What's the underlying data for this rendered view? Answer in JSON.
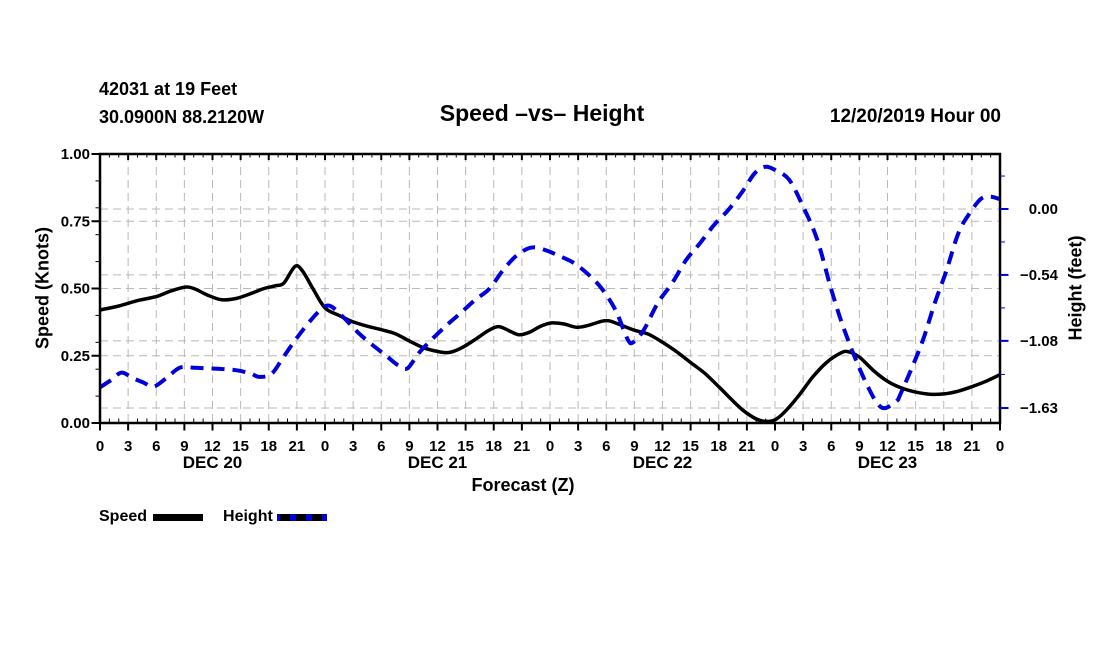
{
  "header": {
    "station_line1": "42031 at 19 Feet",
    "station_line2": "30.0900N 88.2120W",
    "title": "Speed –vs– Height",
    "datetime": "12/20/2019 Hour 00"
  },
  "axes": {
    "left": {
      "title": "Speed (Knots)",
      "tick_labels": [
        "1.00",
        "0.75",
        "0.50",
        "0.25",
        "0.00"
      ],
      "tick_values": [
        1.0,
        0.75,
        0.5,
        0.25,
        0.0
      ],
      "range": [
        0,
        1
      ]
    },
    "right": {
      "title": "Height (feet)",
      "tick_labels": [
        "0.00",
        "−0.54",
        "−1.08",
        "−1.63"
      ],
      "tick_values": [
        0.0,
        -0.54,
        -1.08,
        -1.63
      ]
    },
    "x": {
      "title": "Forecast (Z)",
      "tick_labels": [
        "0",
        "3",
        "6",
        "9",
        "12",
        "15",
        "18",
        "21",
        "0",
        "3",
        "6",
        "9",
        "12",
        "15",
        "18",
        "21",
        "0",
        "3",
        "6",
        "9",
        "12",
        "15",
        "18",
        "21",
        "0",
        "3",
        "6",
        "9",
        "12",
        "15",
        "18",
        "21",
        "0"
      ],
      "hour_step": 3,
      "range_hours": [
        0,
        96
      ],
      "day_labels": [
        "DEC 20",
        "DEC 21",
        "DEC 22",
        "DEC 23"
      ]
    }
  },
  "legend": {
    "items": [
      {
        "label": "Speed",
        "line": "solid",
        "color": "#000000"
      },
      {
        "label": "Height",
        "line": "dashed",
        "color": "#0000dd"
      }
    ]
  },
  "colors": {
    "speed": "#000000",
    "height": "#0000dd",
    "grid": "#b9b9b9",
    "axis": "#000000"
  },
  "chart_data": {
    "type": "line",
    "title": "Speed –vs– Height",
    "xlabel": "Forecast (Z)",
    "x_hours_domain": [
      0,
      96
    ],
    "grid": true,
    "legend_position": "bottom-left",
    "series": [
      {
        "name": "Speed",
        "unit": "Knots",
        "axis": "left",
        "color": "#000000",
        "style": "solid",
        "ylim": [
          0,
          1
        ],
        "points": [
          [
            0,
            0.42
          ],
          [
            2,
            0.435
          ],
          [
            4,
            0.455
          ],
          [
            6,
            0.47
          ],
          [
            7.5,
            0.49
          ],
          [
            9,
            0.505
          ],
          [
            10,
            0.5
          ],
          [
            11.5,
            0.475
          ],
          [
            13,
            0.458
          ],
          [
            14.5,
            0.463
          ],
          [
            16,
            0.48
          ],
          [
            17.5,
            0.5
          ],
          [
            18.7,
            0.51
          ],
          [
            19.6,
            0.52
          ],
          [
            20.8,
            0.582
          ],
          [
            21.6,
            0.565
          ],
          [
            22.7,
            0.5
          ],
          [
            24,
            0.428
          ],
          [
            25.5,
            0.4
          ],
          [
            27,
            0.376
          ],
          [
            28.5,
            0.36
          ],
          [
            30,
            0.347
          ],
          [
            31.5,
            0.332
          ],
          [
            33,
            0.305
          ],
          [
            34.5,
            0.28
          ],
          [
            36,
            0.266
          ],
          [
            37.2,
            0.262
          ],
          [
            38.5,
            0.278
          ],
          [
            40,
            0.31
          ],
          [
            41.5,
            0.345
          ],
          [
            42.6,
            0.358
          ],
          [
            43.8,
            0.34
          ],
          [
            44.7,
            0.328
          ],
          [
            45.8,
            0.337
          ],
          [
            47,
            0.36
          ],
          [
            48.2,
            0.372
          ],
          [
            49.5,
            0.368
          ],
          [
            50.8,
            0.356
          ],
          [
            52,
            0.362
          ],
          [
            53.5,
            0.378
          ],
          [
            54.3,
            0.38
          ],
          [
            55.5,
            0.365
          ],
          [
            57,
            0.345
          ],
          [
            58.5,
            0.33
          ],
          [
            60,
            0.3
          ],
          [
            61.5,
            0.265
          ],
          [
            63,
            0.225
          ],
          [
            64.5,
            0.185
          ],
          [
            66,
            0.135
          ],
          [
            67,
            0.1
          ],
          [
            68.5,
            0.05
          ],
          [
            70,
            0.015
          ],
          [
            71,
            0.006
          ],
          [
            72,
            0.012
          ],
          [
            73,
            0.04
          ],
          [
            74.5,
            0.1
          ],
          [
            76,
            0.17
          ],
          [
            77.5,
            0.225
          ],
          [
            79,
            0.26
          ],
          [
            79.8,
            0.265
          ],
          [
            81,
            0.245
          ],
          [
            82.5,
            0.195
          ],
          [
            84,
            0.155
          ],
          [
            85.5,
            0.13
          ],
          [
            87,
            0.115
          ],
          [
            88.5,
            0.107
          ],
          [
            90,
            0.108
          ],
          [
            91.5,
            0.118
          ],
          [
            93,
            0.135
          ],
          [
            94.5,
            0.155
          ],
          [
            96,
            0.18
          ]
        ]
      },
      {
        "name": "Height",
        "unit": "feet",
        "axis": "right",
        "color": "#0000dd",
        "style": "dashed",
        "axis_ticks": [
          0,
          -0.54,
          -1.08,
          -1.63
        ],
        "points": [
          [
            0,
            -1.46
          ],
          [
            1.2,
            -1.4
          ],
          [
            2.3,
            -1.34
          ],
          [
            3.5,
            -1.385
          ],
          [
            4.6,
            -1.42
          ],
          [
            5.7,
            -1.455
          ],
          [
            7,
            -1.39
          ],
          [
            8.5,
            -1.3
          ],
          [
            10,
            -1.3
          ],
          [
            11.5,
            -1.305
          ],
          [
            13,
            -1.31
          ],
          [
            14.5,
            -1.32
          ],
          [
            16,
            -1.345
          ],
          [
            17,
            -1.375
          ],
          [
            18.3,
            -1.35
          ],
          [
            19.5,
            -1.22
          ],
          [
            21,
            -1.055
          ],
          [
            22.5,
            -0.91
          ],
          [
            23.7,
            -0.815
          ],
          [
            24.6,
            -0.795
          ],
          [
            26,
            -0.89
          ],
          [
            27.5,
            -1.01
          ],
          [
            29,
            -1.11
          ],
          [
            30.5,
            -1.2
          ],
          [
            31.8,
            -1.28
          ],
          [
            32.8,
            -1.305
          ],
          [
            34,
            -1.18
          ],
          [
            35.5,
            -1.06
          ],
          [
            37,
            -0.95
          ],
          [
            38.5,
            -0.85
          ],
          [
            40,
            -0.745
          ],
          [
            41.5,
            -0.655
          ],
          [
            43,
            -0.5
          ],
          [
            44.3,
            -0.39
          ],
          [
            45.6,
            -0.325
          ],
          [
            46.5,
            -0.315
          ],
          [
            47.8,
            -0.345
          ],
          [
            49,
            -0.385
          ],
          [
            50.5,
            -0.44
          ],
          [
            52,
            -0.53
          ],
          [
            53.5,
            -0.65
          ],
          [
            55,
            -0.83
          ],
          [
            56.3,
            -1.07
          ],
          [
            56.9,
            -1.09
          ],
          [
            58,
            -0.99
          ],
          [
            59.5,
            -0.77
          ],
          [
            61,
            -0.61
          ],
          [
            62.5,
            -0.42
          ],
          [
            64,
            -0.28
          ],
          [
            65.5,
            -0.13
          ],
          [
            67,
            -0.01
          ],
          [
            68.5,
            0.14
          ],
          [
            69.8,
            0.29
          ],
          [
            70.9,
            0.345
          ],
          [
            72,
            0.32
          ],
          [
            73.5,
            0.24
          ],
          [
            75,
            0.02
          ],
          [
            76.5,
            -0.25
          ],
          [
            78,
            -0.66
          ],
          [
            79.3,
            -0.97
          ],
          [
            80.7,
            -1.25
          ],
          [
            82,
            -1.47
          ],
          [
            83,
            -1.6
          ],
          [
            83.8,
            -1.63
          ],
          [
            85,
            -1.57
          ],
          [
            85.3,
            -1.53
          ],
          [
            86.6,
            -1.3
          ],
          [
            87.8,
            -1.07
          ],
          [
            89,
            -0.78
          ],
          [
            90.3,
            -0.5
          ],
          [
            91.6,
            -0.19
          ],
          [
            92.8,
            -0.03
          ],
          [
            94,
            0.085
          ],
          [
            95,
            0.1
          ],
          [
            96,
            0.08
          ]
        ]
      }
    ]
  }
}
